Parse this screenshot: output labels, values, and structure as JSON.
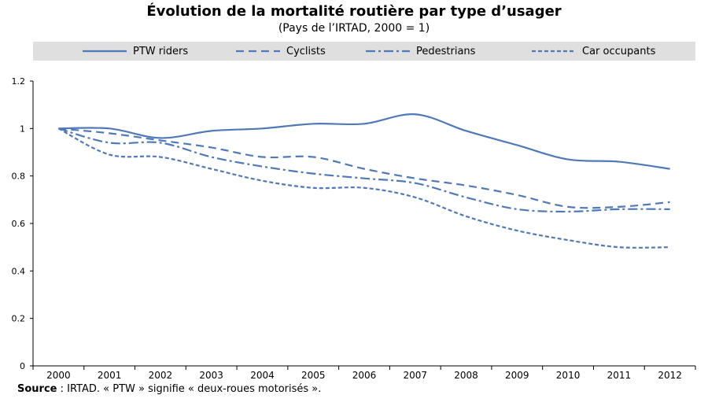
{
  "chart_data": {
    "type": "line",
    "title": "Évolution de la mortalité routière par type d’usager",
    "subtitle": "(Pays de l’IRTAD, 2000 = 1)",
    "x": [
      "2000",
      "2001",
      "2002",
      "2003",
      "2004",
      "2005",
      "2006",
      "2007",
      "2008",
      "2009",
      "2010",
      "2011",
      "2012"
    ],
    "ylim": [
      0,
      1.2
    ],
    "yticks": [
      "0",
      "0.2",
      "0.4",
      "0.6",
      "0.8",
      "1",
      "1.2"
    ],
    "grid": false,
    "legend_position": "top",
    "series": [
      {
        "name": "PTW riders",
        "dash": "solid",
        "values": [
          1.0,
          1.0,
          0.96,
          0.99,
          1.0,
          1.02,
          1.02,
          1.06,
          0.99,
          0.93,
          0.87,
          0.86,
          0.83
        ]
      },
      {
        "name": "Cyclists",
        "dash": "dash",
        "values": [
          1.0,
          0.98,
          0.95,
          0.92,
          0.88,
          0.88,
          0.83,
          0.79,
          0.76,
          0.72,
          0.67,
          0.67,
          0.69
        ]
      },
      {
        "name": "Pedestrians",
        "dash": "dashdot",
        "values": [
          1.0,
          0.94,
          0.94,
          0.88,
          0.84,
          0.81,
          0.79,
          0.77,
          0.71,
          0.66,
          0.65,
          0.66,
          0.66
        ]
      },
      {
        "name": "Car occupants",
        "dash": "short",
        "values": [
          1.0,
          0.89,
          0.88,
          0.83,
          0.78,
          0.75,
          0.75,
          0.71,
          0.63,
          0.57,
          0.53,
          0.5,
          0.5
        ]
      }
    ],
    "colors": {
      "line": "#4f79b8",
      "axis": "#000000",
      "legend_bg": "#dfdfdf"
    },
    "footnote": {
      "bold": "Source",
      "text": " : IRTAD. « PTW » signifie « deux-roues motorisés »."
    }
  }
}
